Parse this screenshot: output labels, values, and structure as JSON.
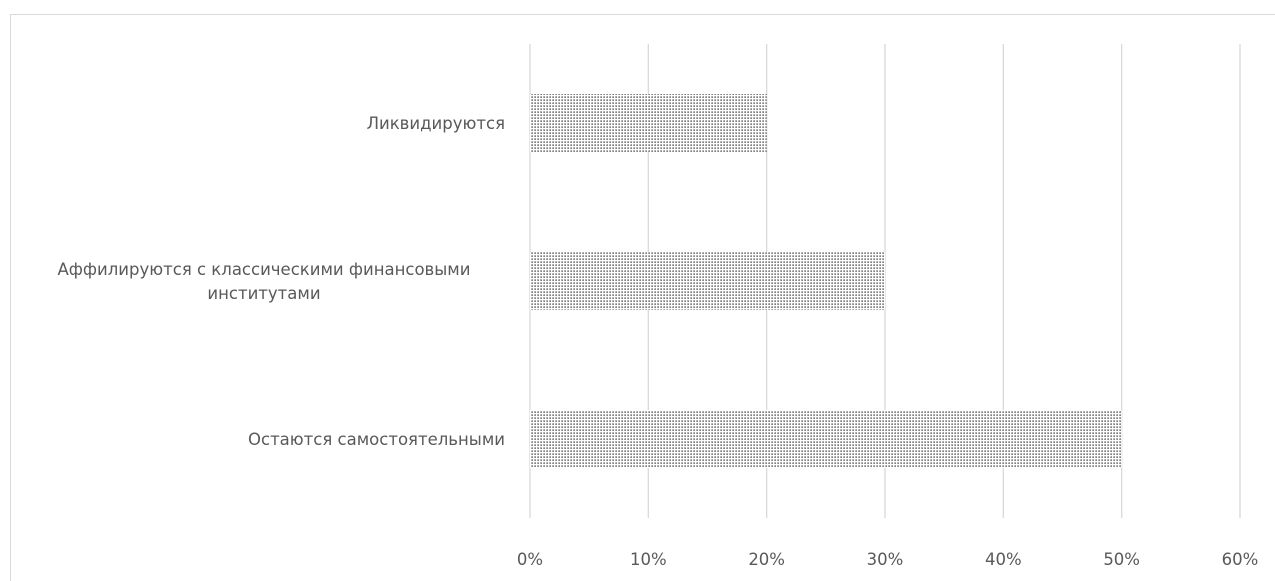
{
  "chart_data": {
    "type": "bar",
    "orientation": "horizontal",
    "categories": [
      "Ликвидируются",
      "Аффилируются с классическими финансовыми институтами",
      "Остаются самостоятельными"
    ],
    "category_lines": [
      [
        "Ликвидируются"
      ],
      [
        "Аффилируются с классическими финансовыми",
        "институтами"
      ],
      [
        "Остаются самостоятельными"
      ]
    ],
    "values": [
      0.2,
      0.3,
      0.5
    ],
    "xlim": [
      0,
      0.6
    ],
    "xticks": [
      0,
      0.1,
      0.2,
      0.3,
      0.4,
      0.5,
      0.6
    ],
    "xtick_labels": [
      "0%",
      "10%",
      "20%",
      "30%",
      "40%",
      "50%",
      "60%"
    ],
    "title": "",
    "xlabel": "",
    "ylabel": "",
    "grid": "vertical",
    "legend": "none",
    "bar_fill": "dotted-pattern",
    "colors": {
      "gridline": "#d9d9d9",
      "text": "#595959",
      "pattern_dot": "#000000",
      "bar_background": "#ffffff"
    }
  }
}
